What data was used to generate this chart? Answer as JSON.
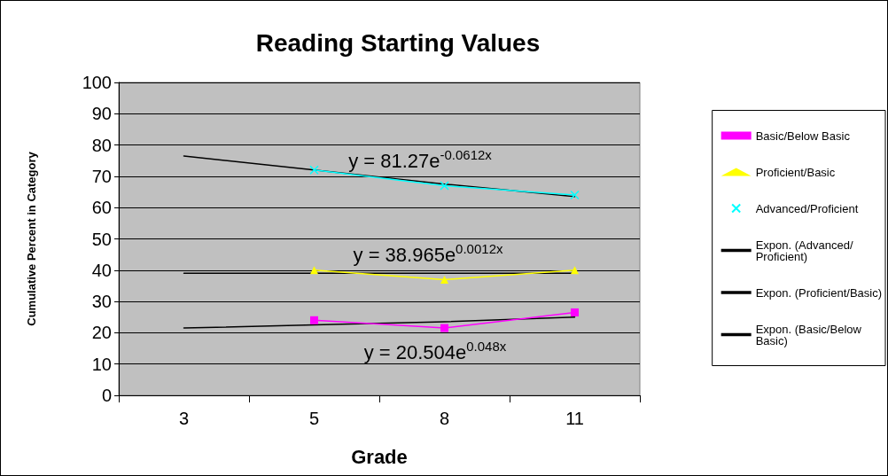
{
  "chart_data": {
    "type": "line",
    "title": "Reading Starting Values",
    "xlabel": "Grade",
    "ylabel": "Cumulative Percent in Category",
    "categories": [
      "3",
      "5",
      "8",
      "11"
    ],
    "series": [
      {
        "name": "Basic/Below Basic",
        "color": "#ff00ff",
        "marker": "square",
        "values": [
          null,
          24,
          21.5,
          26.5
        ]
      },
      {
        "name": "Proficient/Basic",
        "color": "#ffff00",
        "marker": "triangle",
        "values": [
          null,
          40,
          37,
          40
        ]
      },
      {
        "name": "Advanced/Proficient",
        "color": "#00ffff",
        "marker": "cross",
        "values": [
          null,
          72,
          67,
          64
        ]
      },
      {
        "name": "Expon. (Advanced/Proficient)",
        "color": "#000000",
        "marker": "none",
        "values": [
          76.5,
          72,
          67.5,
          63.5
        ]
      },
      {
        "name": "Expon. (Proficient/Basic)",
        "color": "#000000",
        "marker": "none",
        "values": [
          39,
          39,
          39,
          39
        ]
      },
      {
        "name": "Expon. (Basic/Below Basic)",
        "color": "#000000",
        "marker": "none",
        "values": [
          21.5,
          22.5,
          23.5,
          25
        ]
      }
    ],
    "ylim": [
      0,
      100
    ],
    "yticks": [
      0,
      10,
      20,
      30,
      40,
      50,
      60,
      70,
      80,
      90,
      100
    ],
    "grid": "y",
    "legend": "right",
    "line_style": "solid",
    "annotations": [
      "y = 81.27e$^{-0.0612x}$",
      "y = 38.965e$^{0.0012x}$",
      "y = 20.504e$^{0.048x}$"
    ]
  }
}
